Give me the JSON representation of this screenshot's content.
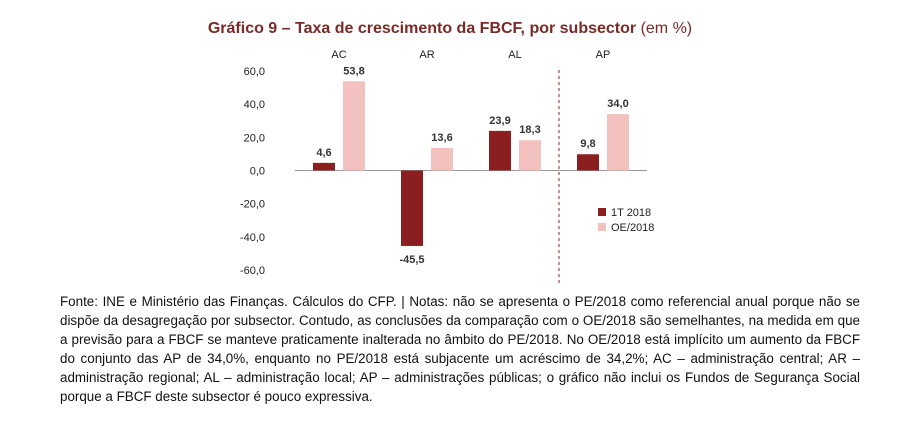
{
  "chart_data": {
    "type": "bar",
    "title": "Gráfico 9 – Taxa de crescimento da FBCF, por subsector",
    "title_unit": "(em %)",
    "categories": [
      "AC",
      "AR",
      "AL",
      "AP"
    ],
    "series": [
      {
        "name": "1T 2018",
        "values": [
          4.6,
          -45.5,
          23.9,
          9.8
        ],
        "labels": [
          "4,6",
          "-45,5",
          "23,9",
          "9,8"
        ],
        "color": "#8b1e1e"
      },
      {
        "name": "OE/2018",
        "values": [
          53.8,
          13.6,
          18.3,
          34.0
        ],
        "labels": [
          "53,8",
          "13,6",
          "18,3",
          "34,0"
        ],
        "color": "#f4c2be"
      }
    ],
    "ylim": [
      -60,
      60
    ],
    "yticks": [
      "60,0",
      "40,0",
      "20,0",
      "0,0",
      "-20,0",
      "-40,0",
      "-60,0"
    ],
    "ytick_values": [
      60,
      40,
      20,
      0,
      -20,
      -40,
      -60
    ],
    "grid": false,
    "legend_position": "right",
    "separator_before": "AP"
  },
  "notes": "Fonte: INE e Ministério das Finanças. Cálculos do CFP. | Notas: não se apresenta o PE/2018 como referencial anual porque não se dispõe da desagregação por subsector. Contudo, as conclusões da comparação com o OE/2018 são semelhantes, na medida em que a previsão para a FBCF se manteve praticamente inalterada no âmbito do PE/2018. No OE/2018 está implícito um aumento da FBCF do conjunto das AP de 34,0%, enquanto no PE/2018 está subjacente um acréscimo de 34,2%; AC – administração central; AR – administração regional; AL – administração local; AP – administrações públicas; o gráfico não inclui os Fundos de Segurança Social porque a FBCF deste subsector é pouco expressiva."
}
